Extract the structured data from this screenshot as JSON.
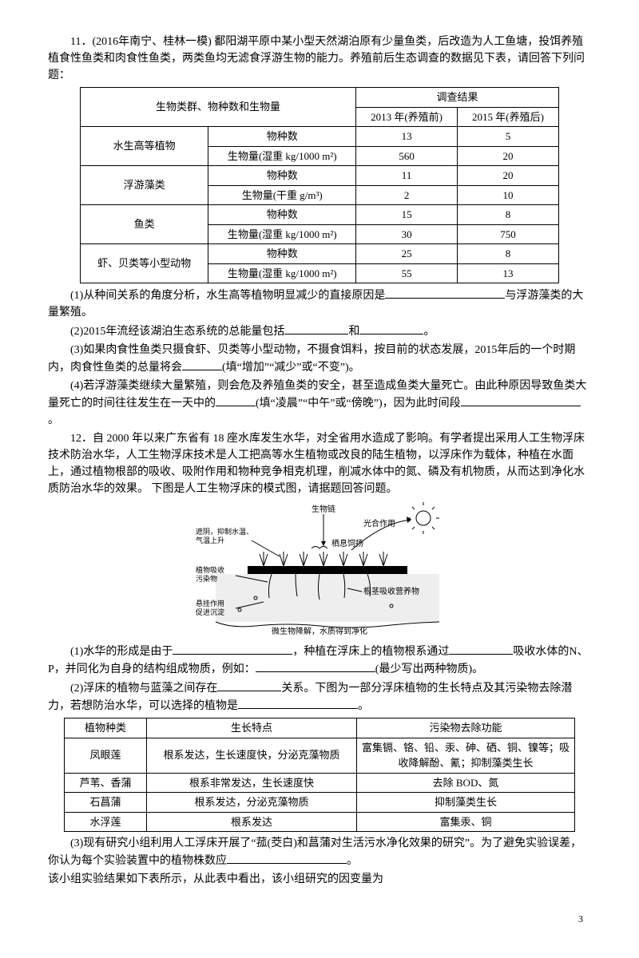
{
  "q11": {
    "intro": "11．(2016年南宁、桂林一模) 鄱阳湖平原中某小型天然湖泊原有少量鱼类，后改造为人工鱼塘，投饵养殖植食性鱼类和肉食性鱼类，两类鱼均无滤食浮游生物的能力。养殖前后生态调查的数据见下表，请回答下列问题：",
    "table": {
      "h1": "调查结果",
      "h2a": "2013 年(养殖前)",
      "h2b": "2015 年(养殖后)",
      "header_left": "生物类群、物种数和生物量",
      "rows": [
        {
          "g": "水生高等植物",
          "r1": "物种数",
          "v1": "13",
          "v2": "5",
          "r2": "生物量(湿重 kg/1000 m²)",
          "w1": "560",
          "w2": "20"
        },
        {
          "g": "浮游藻类",
          "r1": "物种数",
          "v1": "11",
          "v2": "20",
          "r2": "生物量(干重 g/m³)",
          "w1": "2",
          "w2": "10"
        },
        {
          "g": "鱼类",
          "r1": "物种数",
          "v1": "15",
          "v2": "8",
          "r2": "生物量(湿重 kg/1000 m²)",
          "w1": "30",
          "w2": "750"
        },
        {
          "g": "虾、贝类等小型动物",
          "r1": "物种数",
          "v1": "25",
          "v2": "8",
          "r2": "生物量(湿重 kg/1000 m²)",
          "w1": "55",
          "w2": "13"
        }
      ]
    },
    "p1a": "(1)从种间关系的角度分析，水生高等植物明显减少的直接原因是",
    "p1b": "与浮游藻类的大量繁殖。",
    "p2a": "(2)2015年流经该湖泊生态系统的总能量包括",
    "p2b": "和",
    "p2c": "。",
    "p3a": "(3)如果肉食性鱼类只摄食虾、贝类等小型动物，不摄食饵料，按目前的状态发展，2015年后的一个时期内，肉食性鱼类的总量将会",
    "p3b": "(填“增加”“减少”或“不变”)。",
    "p4a": "(4)若浮游藻类继续大量繁殖，则会危及养殖鱼类的安全，甚至造成鱼类大量死亡。由此种原因导致鱼类大量死亡的时间往往发生在一天中的",
    "p4b": "(填“凌晨”“中午”或“傍晚”)，因为此时间段",
    "p4c": "。"
  },
  "q12": {
    "intro": "12．自 2000 年以来广东省有 18 座水库发生水华，对全省用水造成了影响。有学者提出采用人工生物浮床技术防治水华，人工生物浮床技术是人工把高等水生植物或改良的陆生植物，以浮床作为载体，种植在水面上，通过植物根部的吸收、吸附作用和物种竞争相克机理，削减水体中的氮、磷及有机物质，从而达到净化水质防治水华的效果。 下图是人工生物浮床的模式图，请据题回答问题。",
    "fig": {
      "labels": {
        "chain": "生物链",
        "photo": "光合作用",
        "shade": "遮阴，抑制水温、\n气温上升",
        "habitat": "栖息饲扬",
        "absorb": "植物吸收\n污染物",
        "root": "根茎吸收营养物",
        "hang": "悬挂作用\n促进沉淀",
        "microbe": "微生物降解，水质得到净化"
      },
      "colors": {
        "sky": "#ffffff",
        "water": "#dddddd",
        "bed": "#000000",
        "plant": "#555555",
        "sun": "#000000"
      }
    },
    "p1a": "(1)水华的形成是由于",
    "p1b": "，种植在浮床上的植物根系通过",
    "p1c": "吸收水体的N、P，并同化为自身的结构组成物质，例如：",
    "p1d": "(最少写出两种物质)。",
    "p2a": "(2)浮床的植物与蓝藻之间存在",
    "p2b": "关系。下图为一部分浮床植物的生长特点及其污染物去除潜力，若想防治水华，可以选择的植物是",
    "p2c": "。",
    "table2": {
      "h1": "植物种类",
      "h2": "生长特点",
      "h3": "污染物去除功能",
      "rows": [
        {
          "a": "凤眼莲",
          "b": "根系发达，生长速度快，分泌克藻物质",
          "c": "富集镉、铬、铅、汞、砷、硒、铜、镍等；吸收降解酚、氰；抑制藻类生长"
        },
        {
          "a": "芦苇、香蒲",
          "b": "根系非常发达，生长速度快",
          "c": "去除 BOD、氮"
        },
        {
          "a": "石菖蒲",
          "b": "根系发达，分泌克藻物质",
          "c": "抑制藻类生长"
        },
        {
          "a": "水浮莲",
          "b": "根系发达",
          "c": "富集汞、铜"
        }
      ]
    },
    "p3a": "(3)现有研究小组利用人工浮床开展了“菰(茭白)和菖蒲对生活污水净化效果的研究”。为了避免实验误差，你认为每个实验装置中的植物株数应",
    "p3b": "。",
    "p3c": "该小组实验结果如下表所示，从此表中看出，该小组研究的因变量为"
  },
  "pagenum": "3"
}
